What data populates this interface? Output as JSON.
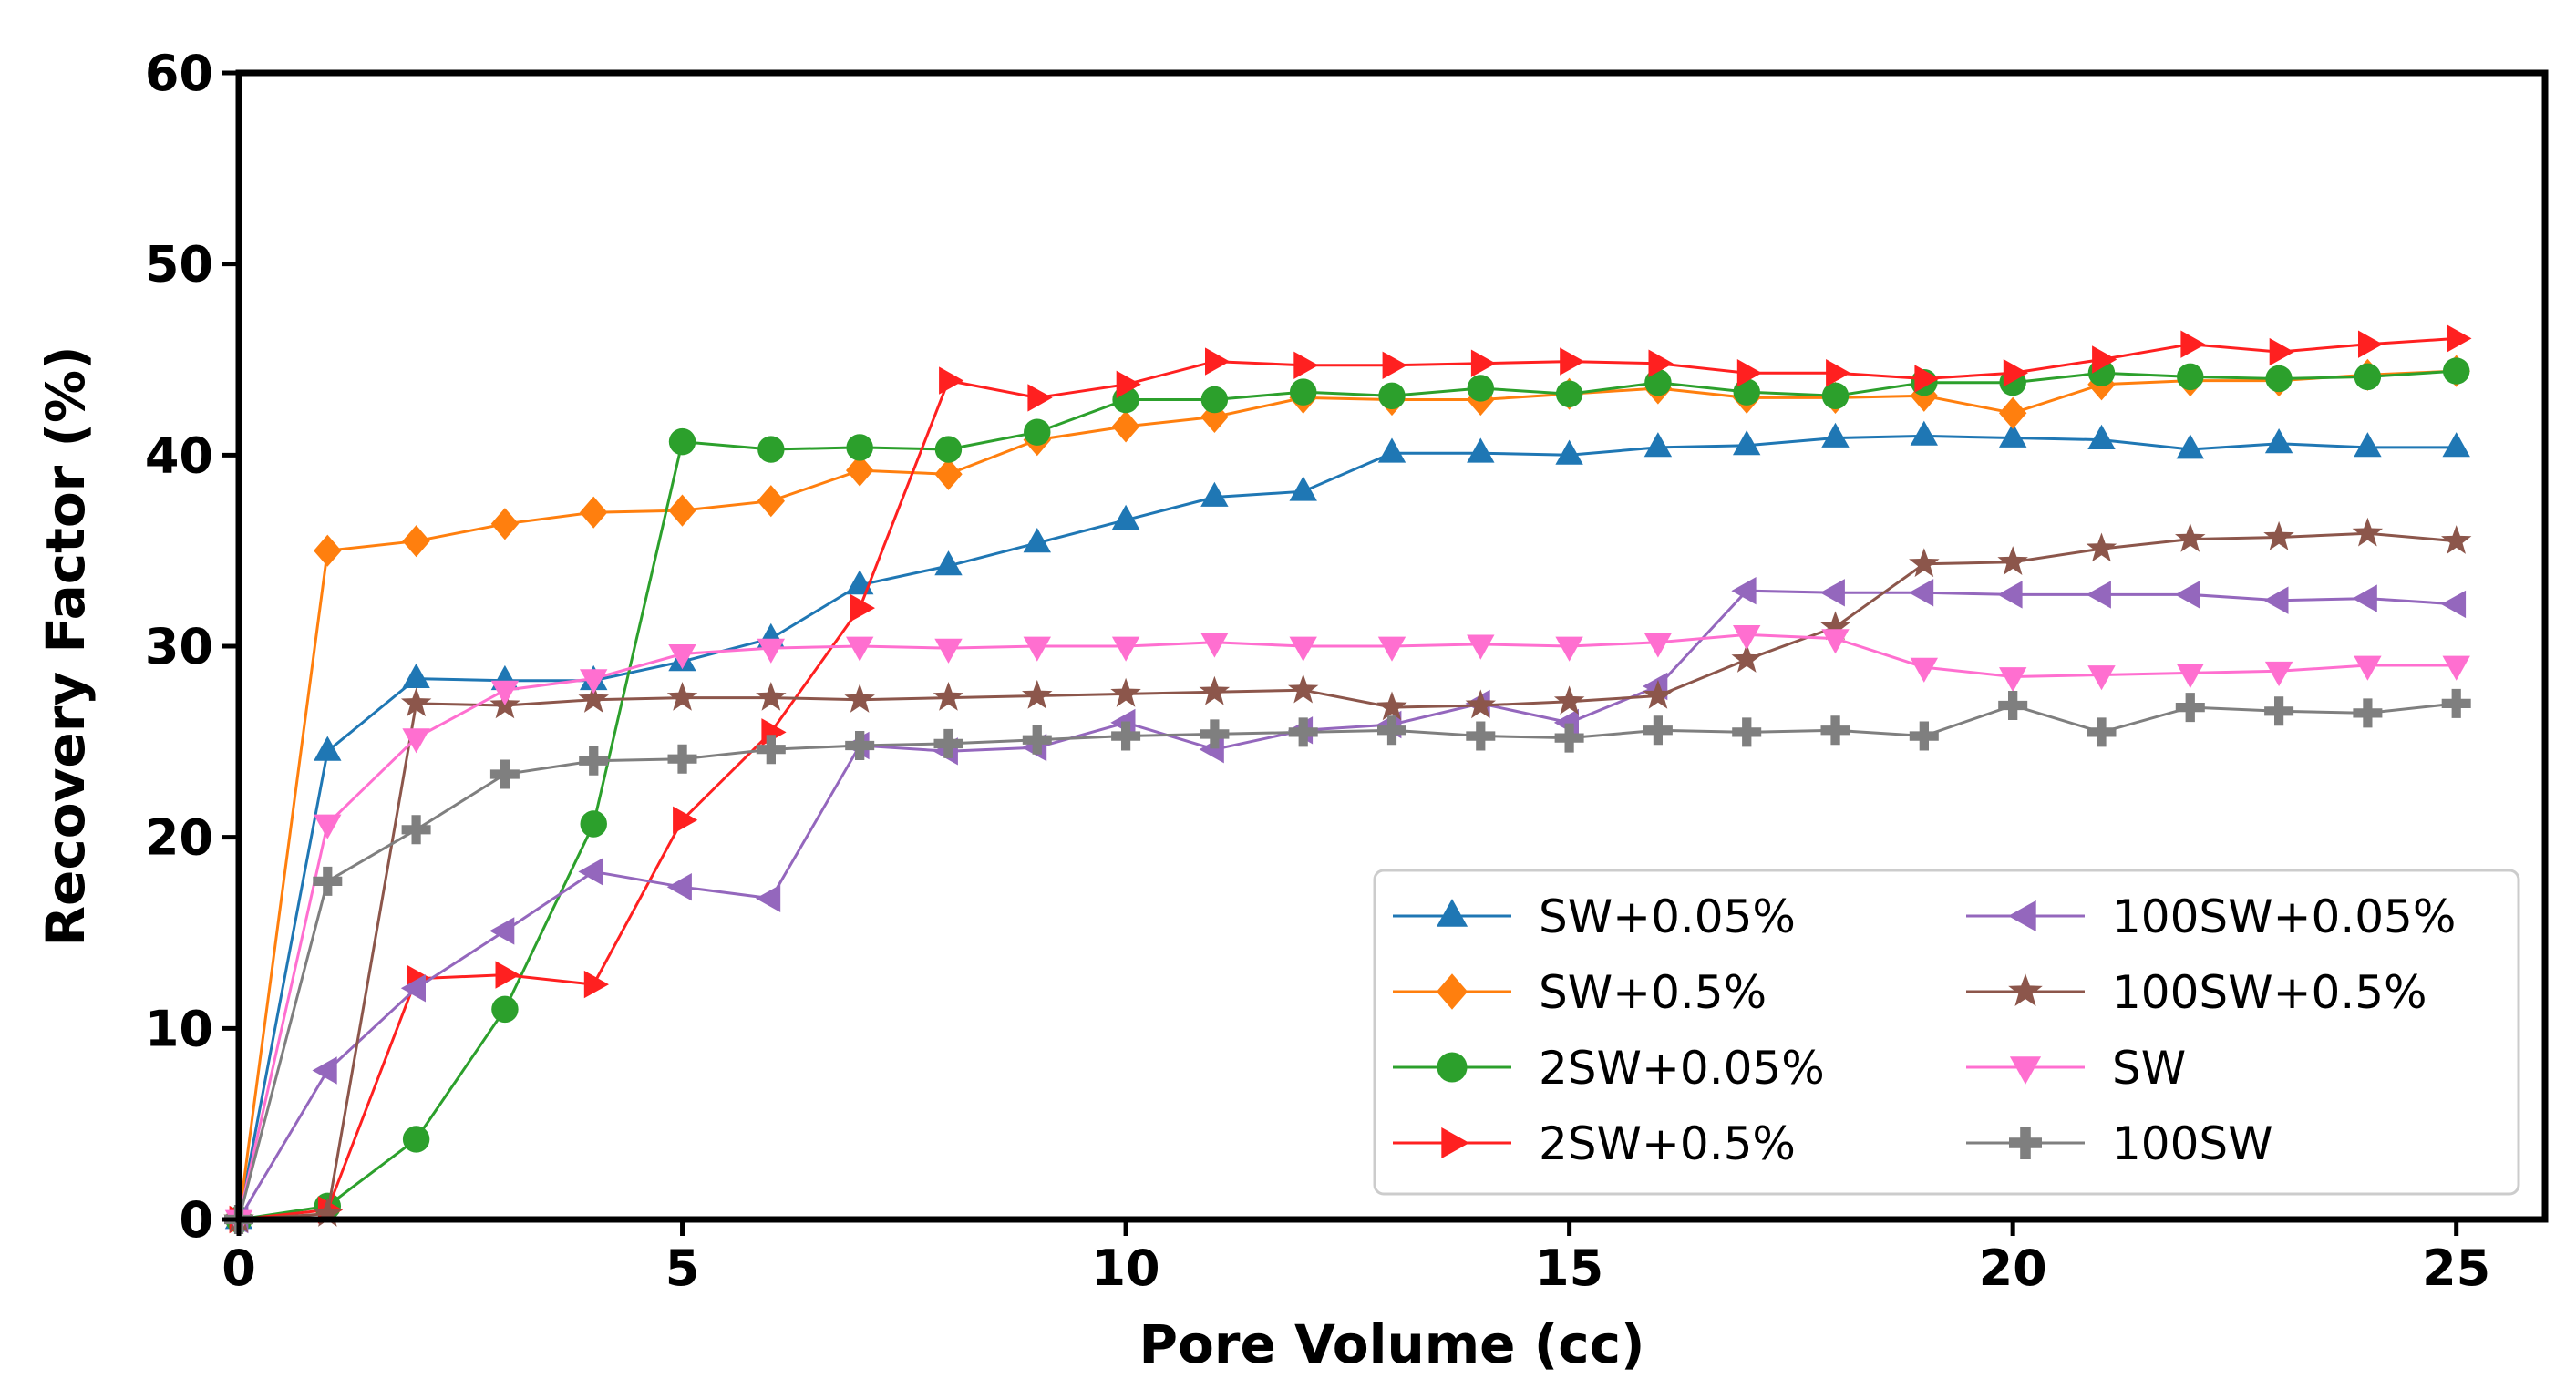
{
  "chart_data": {
    "type": "line",
    "title": "",
    "xlabel": "Pore Volume (cc)",
    "ylabel": "Recovery Factor (%)",
    "xlim": [
      0,
      26
    ],
    "ylim": [
      0,
      60
    ],
    "xticks": [
      0,
      5,
      10,
      15,
      20,
      25
    ],
    "yticks": [
      0,
      10,
      20,
      30,
      40,
      50,
      60
    ],
    "grid": false,
    "legend_position": "lower-right",
    "x": [
      0,
      1,
      2,
      3,
      4,
      5,
      6,
      7,
      8,
      9,
      10,
      11,
      12,
      13,
      14,
      15,
      16,
      17,
      18,
      19,
      20,
      21,
      22,
      23,
      24,
      25
    ],
    "series": [
      {
        "name": "SW+0.05%",
        "color": "#1f77b4",
        "marker": "triangle-up",
        "values": [
          0,
          24.5,
          28.3,
          28.2,
          28.2,
          29.2,
          30.4,
          33.2,
          34.2,
          35.4,
          36.6,
          37.8,
          38.1,
          40.1,
          40.1,
          40.0,
          40.4,
          40.5,
          40.9,
          41.0,
          40.9,
          40.8,
          40.3,
          40.6,
          40.4,
          40.4
        ]
      },
      {
        "name": "SW+0.5%",
        "color": "#ff7f0e",
        "marker": "diamond",
        "values": [
          0,
          35.0,
          35.5,
          36.4,
          37.0,
          37.1,
          37.6,
          39.2,
          39.0,
          40.8,
          41.5,
          42.0,
          43.0,
          42.9,
          42.9,
          43.2,
          43.5,
          43.0,
          43.0,
          43.1,
          42.2,
          43.7,
          43.9,
          43.9,
          44.2,
          44.4
        ]
      },
      {
        "name": "2SW+0.05%",
        "color": "#2ca02c",
        "marker": "circle",
        "values": [
          0,
          0.7,
          4.2,
          11.0,
          20.7,
          40.7,
          40.3,
          40.4,
          40.3,
          41.2,
          42.9,
          42.9,
          43.3,
          43.1,
          43.5,
          43.2,
          43.8,
          43.3,
          43.1,
          43.8,
          43.8,
          44.3,
          44.1,
          44.0,
          44.1,
          44.4
        ]
      },
      {
        "name": "2SW+0.5%",
        "color": "#ff2020",
        "marker": "triangle-right",
        "values": [
          0,
          0.5,
          12.6,
          12.8,
          12.3,
          20.9,
          25.5,
          32.0,
          43.9,
          43.0,
          43.7,
          44.9,
          44.7,
          44.7,
          44.8,
          44.9,
          44.8,
          44.3,
          44.3,
          44.0,
          44.3,
          45.0,
          45.8,
          45.4,
          45.8,
          46.1
        ]
      },
      {
        "name": "100SW+0.05%",
        "color": "#9467bd",
        "marker": "triangle-left",
        "values": [
          0,
          7.8,
          12.1,
          15.1,
          18.2,
          17.4,
          16.8,
          24.8,
          24.5,
          24.7,
          26.0,
          24.6,
          25.6,
          25.9,
          27.0,
          26.0,
          27.9,
          32.9,
          32.8,
          32.8,
          32.7,
          32.7,
          32.7,
          32.4,
          32.5,
          32.2
        ]
      },
      {
        "name": "100SW+0.5%",
        "color": "#8c564b",
        "marker": "star",
        "values": [
          0,
          0.3,
          27.0,
          26.9,
          27.2,
          27.3,
          27.3,
          27.2,
          27.3,
          27.4,
          27.5,
          27.6,
          27.7,
          26.8,
          26.9,
          27.1,
          27.4,
          29.3,
          31.0,
          34.3,
          34.4,
          35.1,
          35.6,
          35.7,
          35.9,
          35.5
        ]
      },
      {
        "name": "SW",
        "color": "#ff6fd0",
        "marker": "triangle-down",
        "values": [
          0,
          20.7,
          25.2,
          27.7,
          28.3,
          29.6,
          29.9,
          30.0,
          29.9,
          30.0,
          30.0,
          30.2,
          30.0,
          30.0,
          30.1,
          30.0,
          30.2,
          30.6,
          30.4,
          28.9,
          28.4,
          28.5,
          28.6,
          28.7,
          29.0,
          29.0
        ]
      },
      {
        "name": "100SW",
        "color": "#7f7f7f",
        "marker": "plus",
        "values": [
          0,
          17.7,
          20.4,
          23.3,
          24.0,
          24.1,
          24.6,
          24.8,
          24.9,
          25.1,
          25.3,
          25.4,
          25.5,
          25.6,
          25.3,
          25.2,
          25.6,
          25.5,
          25.6,
          25.3,
          26.9,
          25.5,
          26.8,
          26.6,
          26.5,
          27.0
        ]
      }
    ]
  }
}
